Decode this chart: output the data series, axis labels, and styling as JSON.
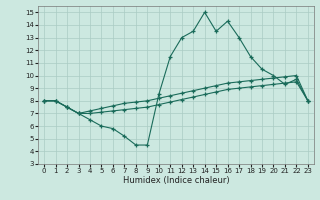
{
  "xlabel": "Humidex (Indice chaleur)",
  "xlim": [
    -0.5,
    23.5
  ],
  "ylim": [
    3,
    15.5
  ],
  "yticks": [
    3,
    4,
    5,
    6,
    7,
    8,
    9,
    10,
    11,
    12,
    13,
    14,
    15
  ],
  "xticks": [
    0,
    1,
    2,
    3,
    4,
    5,
    6,
    7,
    8,
    9,
    10,
    11,
    12,
    13,
    14,
    15,
    16,
    17,
    18,
    19,
    20,
    21,
    22,
    23
  ],
  "bg_color": "#cce8e0",
  "grid_color": "#aaccC4",
  "line_color": "#1a6b5a",
  "lines": [
    {
      "x": [
        0,
        1,
        2,
        3,
        4,
        5,
        6,
        7,
        8,
        9,
        10,
        11,
        12,
        13,
        14,
        15,
        16,
        17,
        18,
        19,
        20,
        21,
        22,
        23
      ],
      "y": [
        8.0,
        8.0,
        7.5,
        7.0,
        6.5,
        6.0,
        5.8,
        5.2,
        4.5,
        4.5,
        8.5,
        11.5,
        13.0,
        13.5,
        15.0,
        13.5,
        14.3,
        13.0,
        11.5,
        10.5,
        10.0,
        9.3,
        9.7,
        8.0
      ]
    },
    {
      "x": [
        0,
        1,
        2,
        3,
        4,
        5,
        6,
        7,
        8,
        9,
        10,
        11,
        12,
        13,
        14,
        15,
        16,
        17,
        18,
        19,
        20,
        21,
        22,
        23
      ],
      "y": [
        8.0,
        8.0,
        7.5,
        7.0,
        7.2,
        7.4,
        7.6,
        7.8,
        7.9,
        8.0,
        8.2,
        8.4,
        8.6,
        8.8,
        9.0,
        9.2,
        9.4,
        9.5,
        9.6,
        9.7,
        9.8,
        9.9,
        10.0,
        8.0
      ]
    },
    {
      "x": [
        0,
        1,
        2,
        3,
        4,
        5,
        6,
        7,
        8,
        9,
        10,
        11,
        12,
        13,
        14,
        15,
        16,
        17,
        18,
        19,
        20,
        21,
        22,
        23
      ],
      "y": [
        8.0,
        8.0,
        7.5,
        7.0,
        7.0,
        7.1,
        7.2,
        7.3,
        7.4,
        7.5,
        7.7,
        7.9,
        8.1,
        8.3,
        8.5,
        8.7,
        8.9,
        9.0,
        9.1,
        9.2,
        9.3,
        9.4,
        9.5,
        8.0
      ]
    }
  ]
}
